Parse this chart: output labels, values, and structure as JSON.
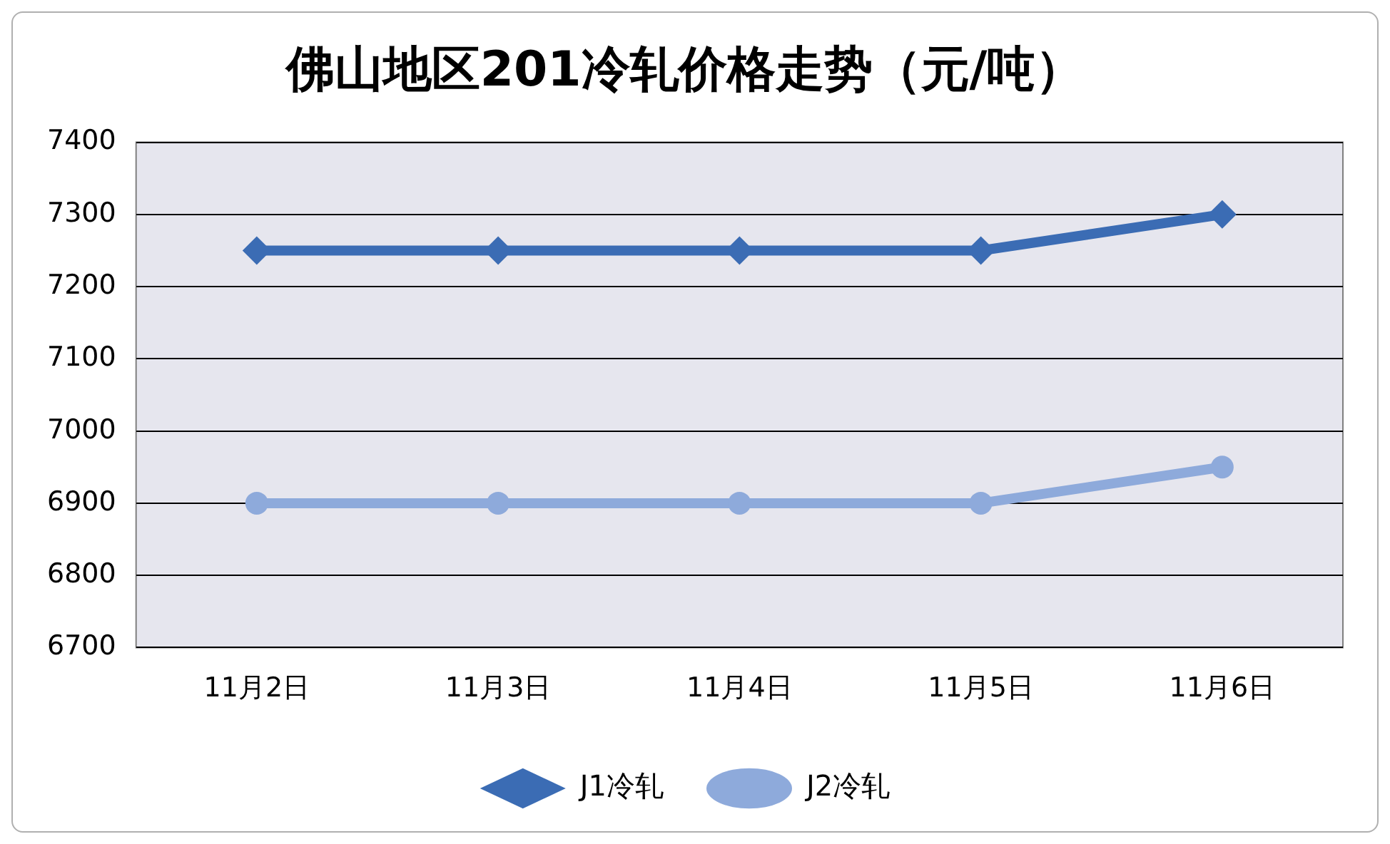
{
  "chart_data": {
    "type": "line",
    "title": "佛山地区201冷轧价格走势（元/吨）",
    "categories": [
      "11月2日",
      "11月3日",
      "11月4日",
      "11月5日",
      "11月6日"
    ],
    "series": [
      {
        "name": "J1冷轧",
        "color": "#3b6cb4",
        "marker": "diamond",
        "values": [
          7250,
          7250,
          7250,
          7250,
          7300
        ]
      },
      {
        "name": "J2冷轧",
        "color": "#8eaadb",
        "marker": "circle",
        "values": [
          6900,
          6900,
          6900,
          6900,
          6950
        ]
      }
    ],
    "ylim": [
      6700,
      7400
    ],
    "yticks": [
      6700,
      6800,
      6900,
      7000,
      7100,
      7200,
      7300,
      7400
    ],
    "grid": "y",
    "legend": "bottom",
    "line_style": "solid"
  }
}
